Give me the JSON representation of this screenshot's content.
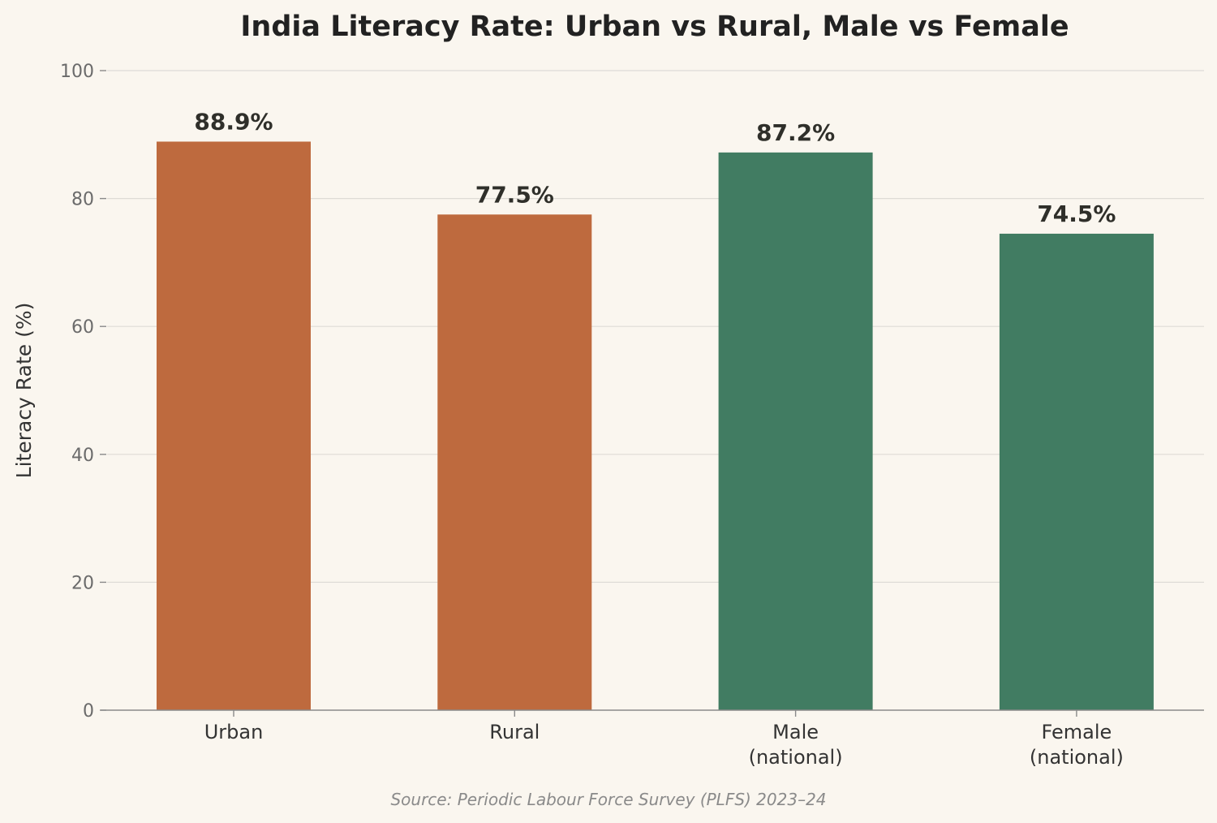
{
  "chart_data": {
    "type": "bar",
    "title": "India Literacy Rate: Urban vs Rural, Male vs Female",
    "ylabel": "Literacy Rate (%)",
    "xlabel": "",
    "categories": [
      [
        "Urban"
      ],
      [
        "Rural"
      ],
      [
        "Male",
        "(national)"
      ],
      [
        "Female",
        "(national)"
      ]
    ],
    "values": [
      88.9,
      77.5,
      87.2,
      74.5
    ],
    "value_labels": [
      "88.9%",
      "77.5%",
      "87.2%",
      "74.5%"
    ],
    "colors": [
      "#be6a3e",
      "#be6a3e",
      "#417c62",
      "#417c62"
    ],
    "ylim": [
      0,
      100
    ],
    "yticks": [
      0,
      20,
      40,
      60,
      80,
      100
    ],
    "grid": true,
    "source": "Source: Periodic Labour Force Survey (PLFS) 2023–24"
  }
}
